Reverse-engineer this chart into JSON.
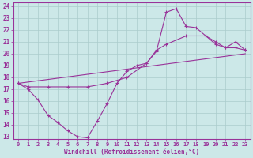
{
  "title": "",
  "xlabel": "Windchill (Refroidissement éolien,°C)",
  "bg_color": "#cce8e8",
  "line_color": "#993399",
  "grid_color": "#aacccc",
  "xlim": [
    -0.5,
    23.5
  ],
  "ylim": [
    12.8,
    24.3
  ],
  "yticks": [
    13,
    14,
    15,
    16,
    17,
    18,
    19,
    20,
    21,
    22,
    23,
    24
  ],
  "xticks": [
    0,
    1,
    2,
    3,
    4,
    5,
    6,
    7,
    8,
    9,
    10,
    11,
    12,
    13,
    14,
    15,
    16,
    17,
    18,
    19,
    20,
    21,
    22,
    23
  ],
  "curve1_x": [
    0,
    1,
    2,
    3,
    4,
    5,
    6,
    7,
    8,
    9,
    10,
    11,
    12,
    13,
    14,
    15,
    16,
    17,
    18,
    19,
    20,
    21,
    22,
    23
  ],
  "curve1_y": [
    17.5,
    17.0,
    16.1,
    14.8,
    14.2,
    13.5,
    13.0,
    12.9,
    14.3,
    15.8,
    17.5,
    18.5,
    19.0,
    19.2,
    20.2,
    23.5,
    23.8,
    22.3,
    22.2,
    21.5,
    20.8,
    20.5,
    21.0,
    20.3
  ],
  "curve2_x": [
    0,
    23
  ],
  "curve2_y": [
    17.5,
    20.0
  ],
  "curve3_x": [
    0,
    1,
    3,
    5,
    7,
    9,
    11,
    13,
    14,
    15,
    17,
    19,
    20,
    21,
    22,
    23
  ],
  "curve3_y": [
    17.5,
    17.2,
    17.2,
    17.2,
    17.2,
    17.5,
    18.0,
    19.2,
    20.3,
    20.8,
    21.5,
    21.5,
    21.0,
    20.5,
    20.5,
    20.3
  ]
}
